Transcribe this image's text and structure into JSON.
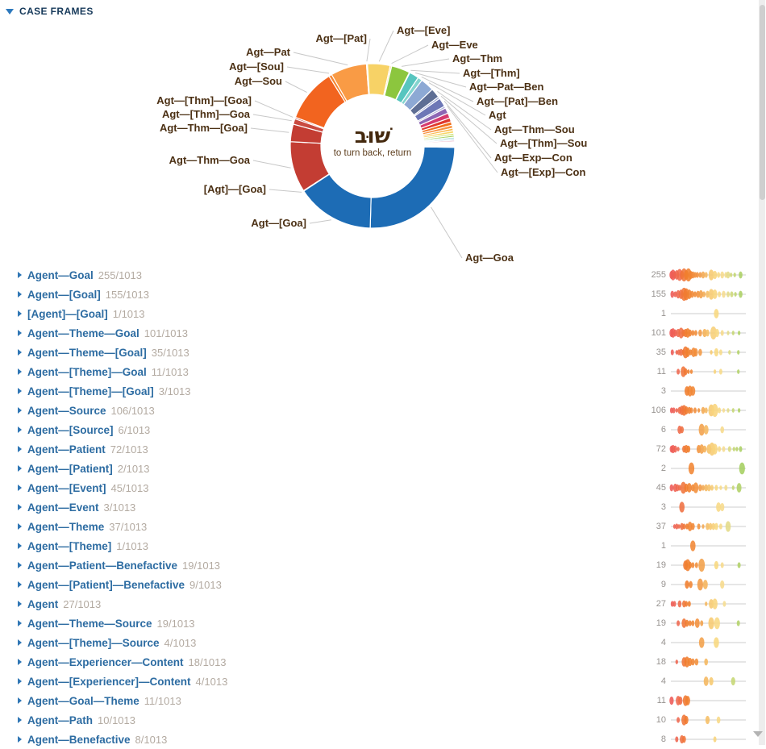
{
  "header": {
    "title": "CASE FRAMES",
    "collapse_icon": "triangle-down"
  },
  "chart": {
    "type": "donut",
    "center_word": "שׁוּב",
    "center_gloss": "to turn back, return",
    "total": 1013,
    "segments": [
      {
        "name": "Agent—Goal",
        "short": "Agt—Goa",
        "value": 255,
        "color": "#1d6cb5"
      },
      {
        "name": "Agent—[Goal]",
        "short": "Agt—[Goa]",
        "value": 155,
        "color": "#1d6cb5"
      },
      {
        "name": "[Agent]—[Goal]",
        "short": "[Agt]—[Goa]",
        "value": 1,
        "color": "#6ba3d6"
      },
      {
        "name": "Agent—Theme—Goal",
        "short": "Agt—Thm—Goa",
        "value": 101,
        "color": "#c33d33"
      },
      {
        "name": "Agent—Theme—[Goal]",
        "short": "Agt—Thm—[Goa]",
        "value": 35,
        "color": "#c33d33"
      },
      {
        "name": "Agent—[Theme]—Goal",
        "short": "Agt—[Thm]—Goa",
        "value": 11,
        "color": "#c94a40"
      },
      {
        "name": "Agent—[Theme]—[Goal]",
        "short": "Agt—[Thm]—[Goa]",
        "value": 3,
        "color": "#c94a40"
      },
      {
        "name": "Agent—Source",
        "short": "Agt—Sou",
        "value": 106,
        "color": "#f2641f"
      },
      {
        "name": "Agent—[Source]",
        "short": "Agt—[Sou]",
        "value": 6,
        "color": "#f58632"
      },
      {
        "name": "Agent—Patient",
        "short": "Agt—Pat",
        "value": 72,
        "color": "#f99b45"
      },
      {
        "name": "Agent—[Patient]",
        "short": "Agt—[Pat]",
        "value": 2,
        "color": "#f9a95c"
      },
      {
        "name": "Agent—[Event]",
        "short": "Agt—[Eve]",
        "value": 45,
        "color": "#f7d266"
      },
      {
        "name": "Agent—Event",
        "short": "Agt—Eve",
        "value": 3,
        "color": "#f9dd8f"
      },
      {
        "name": "Agent—Theme",
        "short": "Agt—Thm",
        "value": 37,
        "color": "#8cc63e"
      },
      {
        "name": "Agent—[Theme]",
        "short": "Agt—[Thm]",
        "value": 1,
        "color": "#aed581"
      },
      {
        "name": "Agent—Patient—Benefactive",
        "short": "Agt—Pat—Ben",
        "value": 19,
        "color": "#57c5bf"
      },
      {
        "name": "Agent—[Patient]—Benefactive",
        "short": "Agt—[Pat]—Ben",
        "value": 9,
        "color": "#84d4cf"
      },
      {
        "name": "Agent",
        "short": "Agt",
        "value": 27,
        "color": "#8da9d4"
      },
      {
        "name": "Agent—Theme—Source",
        "short": "Agt—Thm—Sou",
        "value": 19,
        "color": "#5e6e94"
      },
      {
        "name": "Agent—[Theme]—Source",
        "short": "Agt—[Thm]—Sou",
        "value": 4,
        "color": "#9aa6cf"
      },
      {
        "name": "Agent—Experiencer—Content",
        "short": "Agt—Exp—Con",
        "value": 18,
        "color": "#6d77b6"
      },
      {
        "name": "Agent—[Experiencer]—Content",
        "short": "Agt—[Exp]—Con",
        "value": 4,
        "color": "#aeb0d8"
      },
      {
        "name": "Agent—Goal—Theme",
        "short": null,
        "value": 11,
        "color": "#8d66b4"
      },
      {
        "name": "Agent—Path",
        "short": null,
        "value": 10,
        "color": "#d63a6f"
      },
      {
        "name": "Agent—Benefactive",
        "short": null,
        "value": 8,
        "color": "#e0392e"
      }
    ],
    "others": {
      "values": [
        7,
        6,
        5,
        5,
        4,
        4,
        3,
        3,
        3,
        2,
        2,
        2,
        2,
        1,
        1,
        1
      ],
      "colors": [
        "#f2701d",
        "#f79240",
        "#fbb94e",
        "#f8d566",
        "#cfe070",
        "#a6d45e",
        "#7ccbb8",
        "#a9c9e2",
        "#eeb7c6",
        "#f3d1d8",
        "#ece7df",
        "#f3efe9",
        "#f7f4f0",
        "#faf8f5",
        "#fcfbf9",
        "#f0a24b"
      ]
    }
  },
  "rows": [
    {
      "label": "Agent—Goal",
      "count": "255/1013",
      "n": 255,
      "spark": [
        [
          0.01,
          5
        ],
        [
          0.03,
          7
        ],
        [
          0.05,
          4
        ],
        [
          0.08,
          6
        ],
        [
          0.12,
          8
        ],
        [
          0.15,
          5
        ],
        [
          0.18,
          9
        ],
        [
          0.21,
          6
        ],
        [
          0.24,
          9
        ],
        [
          0.27,
          5
        ],
        [
          0.3,
          4
        ],
        [
          0.33,
          3
        ],
        [
          0.36,
          3
        ],
        [
          0.4,
          3
        ],
        [
          0.44,
          4
        ],
        [
          0.48,
          3
        ],
        [
          0.55,
          7
        ],
        [
          0.6,
          5
        ],
        [
          0.65,
          3
        ],
        [
          0.7,
          4
        ],
        [
          0.75,
          3
        ],
        [
          0.78,
          4
        ],
        [
          0.82,
          2
        ],
        [
          0.87,
          2
        ],
        [
          0.95,
          4
        ]
      ]
    },
    {
      "label": "Agent—[Goal]",
      "count": "155/1013",
      "n": 155,
      "spark": [
        [
          0.02,
          4
        ],
        [
          0.06,
          3
        ],
        [
          0.1,
          5
        ],
        [
          0.14,
          6
        ],
        [
          0.18,
          9
        ],
        [
          0.21,
          8
        ],
        [
          0.25,
          6
        ],
        [
          0.29,
          4
        ],
        [
          0.33,
          3
        ],
        [
          0.37,
          4
        ],
        [
          0.41,
          5
        ],
        [
          0.45,
          3
        ],
        [
          0.5,
          4
        ],
        [
          0.55,
          7
        ],
        [
          0.6,
          6
        ],
        [
          0.66,
          3
        ],
        [
          0.72,
          4
        ],
        [
          0.78,
          3
        ],
        [
          0.83,
          3
        ],
        [
          0.88,
          2
        ],
        [
          0.95,
          4
        ]
      ]
    },
    {
      "label": "[Agent]—[Goal]",
      "count": "1/1013",
      "n": 1,
      "spark": [
        [
          0.62,
          6
        ]
      ]
    },
    {
      "label": "Agent—Theme—Goal",
      "count": "101/1013",
      "n": 101,
      "spark": [
        [
          0.01,
          5
        ],
        [
          0.03,
          6
        ],
        [
          0.06,
          4
        ],
        [
          0.1,
          5
        ],
        [
          0.14,
          7
        ],
        [
          0.17,
          4
        ],
        [
          0.2,
          5
        ],
        [
          0.23,
          6
        ],
        [
          0.26,
          4
        ],
        [
          0.3,
          3
        ],
        [
          0.34,
          3
        ],
        [
          0.4,
          4
        ],
        [
          0.46,
          5
        ],
        [
          0.5,
          4
        ],
        [
          0.58,
          9
        ],
        [
          0.63,
          5
        ],
        [
          0.7,
          3
        ],
        [
          0.78,
          2
        ],
        [
          0.85,
          2
        ],
        [
          0.93,
          2
        ]
      ]
    },
    {
      "label": "Agent—Theme—[Goal]",
      "count": "35/1013",
      "n": 35,
      "spark": [
        [
          0.02,
          3
        ],
        [
          0.08,
          2
        ],
        [
          0.11,
          3
        ],
        [
          0.14,
          4
        ],
        [
          0.17,
          3
        ],
        [
          0.2,
          8
        ],
        [
          0.23,
          6
        ],
        [
          0.27,
          3
        ],
        [
          0.31,
          6
        ],
        [
          0.34,
          5
        ],
        [
          0.4,
          4
        ],
        [
          0.55,
          2
        ],
        [
          0.62,
          5
        ],
        [
          0.68,
          3
        ],
        [
          0.8,
          2
        ],
        [
          0.92,
          2
        ]
      ]
    },
    {
      "label": "Agent—[Theme]—Goal",
      "count": "11/1013",
      "n": 11,
      "spark": [
        [
          0.1,
          3
        ],
        [
          0.17,
          7
        ],
        [
          0.2,
          4
        ],
        [
          0.24,
          2
        ],
        [
          0.28,
          2
        ],
        [
          0.6,
          2
        ],
        [
          0.68,
          3
        ],
        [
          0.92,
          2
        ]
      ]
    },
    {
      "label": "Agent—[Theme]—[Goal]",
      "count": "3/1013",
      "n": 3,
      "spark": [
        [
          0.22,
          6
        ],
        [
          0.26,
          7
        ],
        [
          0.3,
          6
        ]
      ]
    },
    {
      "label": "Agent—Source",
      "count": "106/1013",
      "n": 106,
      "spark": [
        [
          0.01,
          3
        ],
        [
          0.04,
          3
        ],
        [
          0.08,
          2
        ],
        [
          0.12,
          4
        ],
        [
          0.15,
          6
        ],
        [
          0.18,
          7
        ],
        [
          0.21,
          5
        ],
        [
          0.25,
          4
        ],
        [
          0.28,
          3
        ],
        [
          0.33,
          3
        ],
        [
          0.38,
          2
        ],
        [
          0.44,
          4
        ],
        [
          0.48,
          3
        ],
        [
          0.55,
          8
        ],
        [
          0.6,
          9
        ],
        [
          0.66,
          3
        ],
        [
          0.72,
          2
        ],
        [
          0.78,
          2
        ],
        [
          0.85,
          2
        ],
        [
          0.93,
          2
        ]
      ]
    },
    {
      "label": "Agent—[Source]",
      "count": "6/1013",
      "n": 6,
      "spark": [
        [
          0.12,
          5
        ],
        [
          0.15,
          4
        ],
        [
          0.42,
          8
        ],
        [
          0.48,
          6
        ],
        [
          0.7,
          4
        ]
      ]
    },
    {
      "label": "Agent—Patient",
      "count": "72/1013",
      "n": 72,
      "spark": [
        [
          0.01,
          4
        ],
        [
          0.03,
          5
        ],
        [
          0.06,
          4
        ],
        [
          0.1,
          2
        ],
        [
          0.18,
          4
        ],
        [
          0.21,
          5
        ],
        [
          0.24,
          4
        ],
        [
          0.38,
          5
        ],
        [
          0.42,
          6
        ],
        [
          0.46,
          4
        ],
        [
          0.52,
          6
        ],
        [
          0.56,
          9
        ],
        [
          0.6,
          7
        ],
        [
          0.66,
          3
        ],
        [
          0.72,
          3
        ],
        [
          0.8,
          3
        ],
        [
          0.86,
          2
        ],
        [
          0.9,
          2
        ],
        [
          0.95,
          3
        ]
      ]
    },
    {
      "label": "Agent—[Patient]",
      "count": "2/1013",
      "n": 2,
      "spark": [
        [
          0.28,
          8
        ],
        [
          0.97,
          8
        ]
      ]
    },
    {
      "label": "Agent—[Event]",
      "count": "45/1013",
      "n": 45,
      "spark": [
        [
          0.01,
          4
        ],
        [
          0.06,
          5
        ],
        [
          0.09,
          4
        ],
        [
          0.12,
          3
        ],
        [
          0.17,
          8
        ],
        [
          0.21,
          5
        ],
        [
          0.25,
          6
        ],
        [
          0.3,
          4
        ],
        [
          0.34,
          7
        ],
        [
          0.4,
          4
        ],
        [
          0.44,
          3
        ],
        [
          0.48,
          4
        ],
        [
          0.52,
          4
        ],
        [
          0.56,
          3
        ],
        [
          0.62,
          3
        ],
        [
          0.68,
          2
        ],
        [
          0.75,
          3
        ],
        [
          0.85,
          2
        ],
        [
          0.93,
          6
        ]
      ]
    },
    {
      "label": "Agent—Event",
      "count": "3/1013",
      "n": 3,
      "spark": [
        [
          0.15,
          7
        ],
        [
          0.65,
          6
        ],
        [
          0.7,
          5
        ]
      ]
    },
    {
      "label": "Agent—Theme",
      "count": "37/1013",
      "n": 37,
      "spark": [
        [
          0.05,
          2
        ],
        [
          0.08,
          3
        ],
        [
          0.11,
          2
        ],
        [
          0.15,
          4
        ],
        [
          0.18,
          3
        ],
        [
          0.22,
          3
        ],
        [
          0.26,
          6
        ],
        [
          0.3,
          4
        ],
        [
          0.38,
          3
        ],
        [
          0.44,
          2
        ],
        [
          0.5,
          4
        ],
        [
          0.54,
          4
        ],
        [
          0.58,
          4
        ],
        [
          0.62,
          4
        ],
        [
          0.68,
          3
        ],
        [
          0.78,
          7
        ]
      ]
    },
    {
      "label": "Agent—[Theme]",
      "count": "1/1013",
      "n": 1,
      "spark": [
        [
          0.3,
          7
        ]
      ]
    },
    {
      "label": "Agent—Patient—Benefactive",
      "count": "19/1013",
      "n": 19,
      "spark": [
        [
          0.2,
          6
        ],
        [
          0.23,
          8
        ],
        [
          0.26,
          4
        ],
        [
          0.3,
          3
        ],
        [
          0.35,
          3
        ],
        [
          0.42,
          9
        ],
        [
          0.62,
          5
        ],
        [
          0.7,
          3
        ],
        [
          0.93,
          3
        ]
      ]
    },
    {
      "label": "Agent—[Patient]—Benefactive",
      "count": "9/1013",
      "n": 9,
      "spark": [
        [
          0.22,
          5
        ],
        [
          0.27,
          4
        ],
        [
          0.4,
          8
        ],
        [
          0.47,
          6
        ],
        [
          0.7,
          5
        ]
      ]
    },
    {
      "label": "Agent",
      "count": "27/1013",
      "n": 27,
      "spark": [
        [
          0.02,
          3
        ],
        [
          0.05,
          3
        ],
        [
          0.12,
          4
        ],
        [
          0.18,
          4
        ],
        [
          0.21,
          3
        ],
        [
          0.25,
          3
        ],
        [
          0.48,
          2
        ],
        [
          0.55,
          6
        ],
        [
          0.6,
          7
        ],
        [
          0.73,
          3
        ]
      ]
    },
    {
      "label": "Agent—Theme—Source",
      "count": "19/1013",
      "n": 19,
      "spark": [
        [
          0.1,
          3
        ],
        [
          0.18,
          6
        ],
        [
          0.22,
          4
        ],
        [
          0.26,
          3
        ],
        [
          0.3,
          3
        ],
        [
          0.36,
          6
        ],
        [
          0.42,
          3
        ],
        [
          0.55,
          8
        ],
        [
          0.63,
          8
        ],
        [
          0.92,
          3
        ]
      ]
    },
    {
      "label": "Agent—[Theme]—Source",
      "count": "4/1013",
      "n": 4,
      "spark": [
        [
          0.42,
          7
        ],
        [
          0.62,
          7
        ]
      ]
    },
    {
      "label": "Agent—Experiencer—Content",
      "count": "18/1013",
      "n": 18,
      "spark": [
        [
          0.08,
          2
        ],
        [
          0.18,
          6
        ],
        [
          0.22,
          7
        ],
        [
          0.26,
          5
        ],
        [
          0.3,
          4
        ],
        [
          0.35,
          4
        ],
        [
          0.48,
          4
        ]
      ]
    },
    {
      "label": "Agent—[Experiencer]—Content",
      "count": "4/1013",
      "n": 4,
      "spark": [
        [
          0.48,
          6
        ],
        [
          0.55,
          5
        ],
        [
          0.85,
          5
        ]
      ]
    },
    {
      "label": "Agent—Goal—Theme",
      "count": "11/1013",
      "n": 11,
      "spark": [
        [
          0.01,
          5
        ],
        [
          0.1,
          6
        ],
        [
          0.13,
          5
        ],
        [
          0.2,
          7
        ],
        [
          0.23,
          6
        ]
      ]
    },
    {
      "label": "Agent—Path",
      "count": "10/1013",
      "n": 10,
      "spark": [
        [
          0.1,
          3
        ],
        [
          0.18,
          7
        ],
        [
          0.21,
          5
        ],
        [
          0.5,
          5
        ],
        [
          0.65,
          4
        ]
      ]
    },
    {
      "label": "Agent—Benefactive",
      "count": "8/1013",
      "n": 8,
      "spark": [
        [
          0.08,
          3
        ],
        [
          0.15,
          5
        ],
        [
          0.18,
          4
        ],
        [
          0.6,
          3
        ]
      ]
    }
  ]
}
